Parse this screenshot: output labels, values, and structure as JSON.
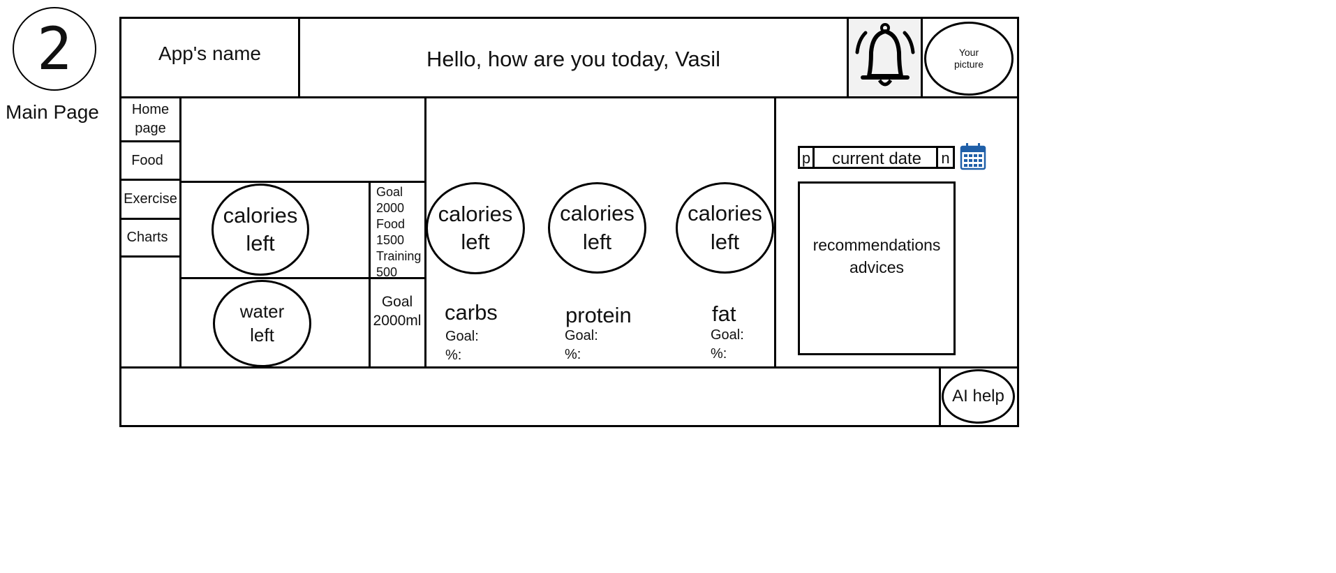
{
  "page_badge": {
    "number": "2",
    "label": "Main Page"
  },
  "header": {
    "app_name": "App's name",
    "greeting": "Hello, how are you today, Vasil",
    "notifications_icon": "bell-icon",
    "profile_picture_label": "Your\npicture"
  },
  "sidebar": {
    "items": [
      {
        "label": "Home\npage"
      },
      {
        "label": "Food"
      },
      {
        "label": "Exercise"
      },
      {
        "label": "Charts"
      }
    ]
  },
  "summary": {
    "calories_circle": "calories\nleft",
    "calories_breakdown": {
      "goal_label": "Goal",
      "goal": "2000",
      "food_label": "Food",
      "food": "1500",
      "training_label": "Training",
      "training": "500"
    },
    "water_circle": "water\nleft",
    "water_goal": "Goal\n2000ml"
  },
  "macros": [
    {
      "circle": "calories\nleft",
      "name": "carbs",
      "goal": "Goal:",
      "percent": "%:"
    },
    {
      "circle": "calories\nleft",
      "name": "protein",
      "goal": "Goal:",
      "percent": "%:"
    },
    {
      "circle": "calories\nleft",
      "name": "fat",
      "goal": "Goal:",
      "percent": "%:"
    }
  ],
  "date_nav": {
    "prev": "p",
    "current": "current date",
    "next": "n",
    "calendar_icon": "calendar-icon"
  },
  "recommendations": "recommendations\nadvices",
  "footer": {
    "ai_help": "AI help"
  },
  "colors": {
    "stroke": "#000000",
    "calendar": "#1f5fa8",
    "bell_bg": "#f2f2f2"
  }
}
